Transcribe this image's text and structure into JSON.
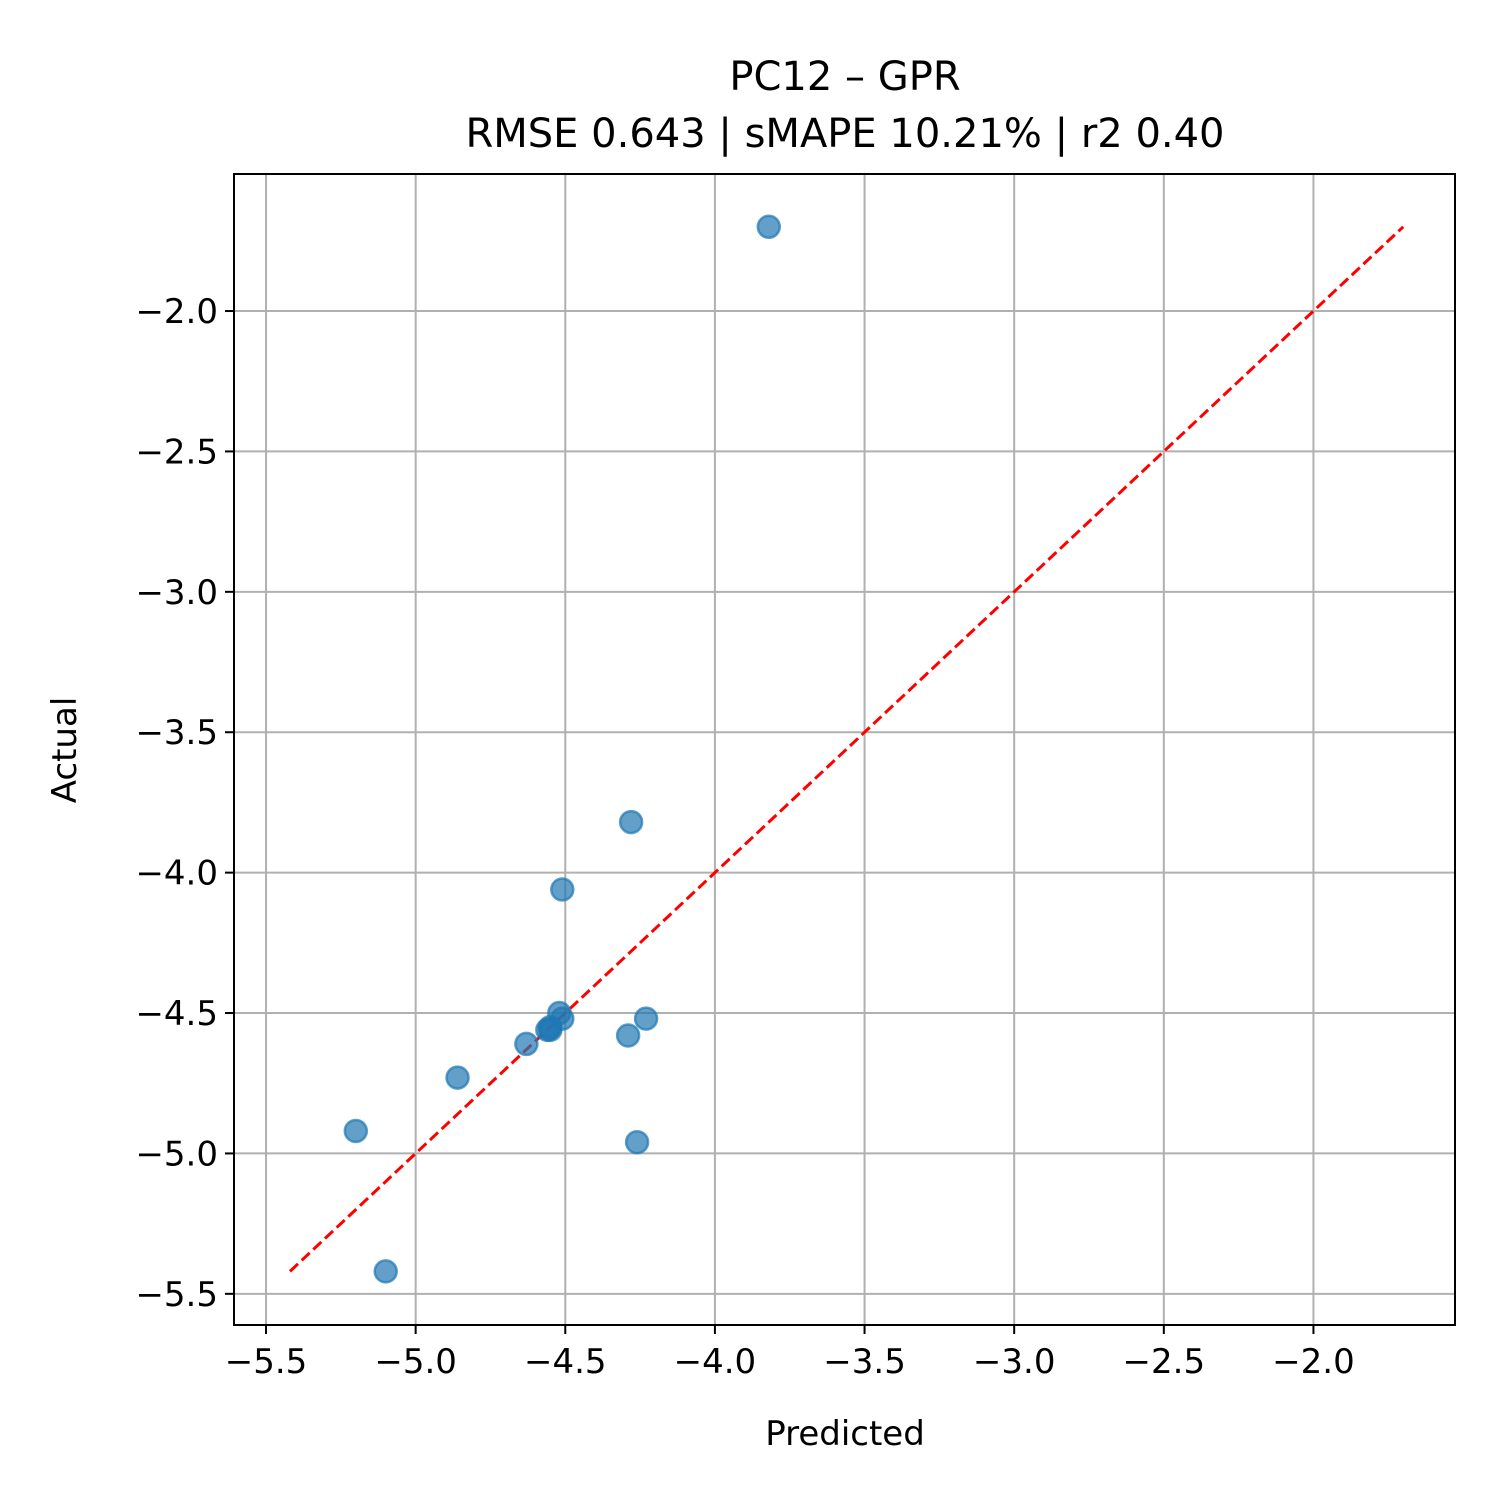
{
  "chart_data": {
    "type": "scatter",
    "title": "PC12 – GPR",
    "subtitle": "RMSE 0.643 | sMAPE 10.21%  | r2 0.40",
    "xlabel": "Predicted",
    "ylabel": "Actual",
    "xlim": [
      -5.607,
      -1.527
    ],
    "ylim": [
      -5.611,
      -1.512
    ],
    "xticks": [
      -5.5,
      -5.0,
      -4.5,
      -4.0,
      -3.5,
      -3.0,
      -2.5,
      -2.0
    ],
    "yticks": [
      -2.0,
      -2.5,
      -3.0,
      -3.5,
      -4.0,
      -4.5,
      -5.0,
      -5.5
    ],
    "grid": true,
    "marker_color": "#1f77b4",
    "reference_line_color": "#ff0000",
    "reference_line": [
      [
        -5.42,
        -5.42
      ],
      [
        -1.7,
        -1.7
      ]
    ],
    "points": [
      {
        "x": -3.82,
        "y": -1.7
      },
      {
        "x": -4.28,
        "y": -3.82
      },
      {
        "x": -4.51,
        "y": -4.06
      },
      {
        "x": -4.52,
        "y": -4.5
      },
      {
        "x": -4.51,
        "y": -4.52
      },
      {
        "x": -4.55,
        "y": -4.55
      },
      {
        "x": -4.56,
        "y": -4.56
      },
      {
        "x": -4.55,
        "y": -4.56
      },
      {
        "x": -4.63,
        "y": -4.61
      },
      {
        "x": -4.29,
        "y": -4.58
      },
      {
        "x": -4.23,
        "y": -4.52
      },
      {
        "x": -4.86,
        "y": -4.73
      },
      {
        "x": -5.2,
        "y": -4.92
      },
      {
        "x": -4.26,
        "y": -4.96
      },
      {
        "x": -5.1,
        "y": -5.42
      }
    ]
  }
}
